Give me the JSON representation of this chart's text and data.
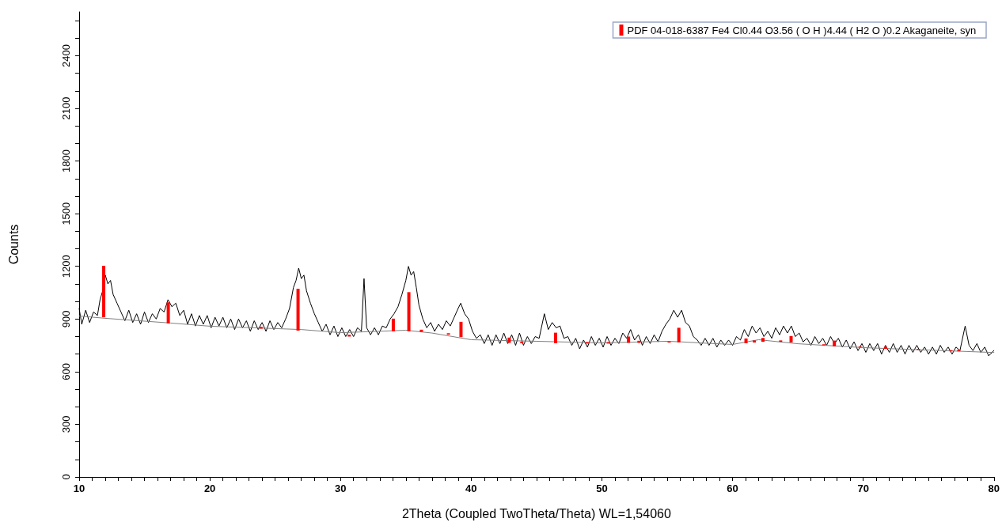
{
  "chart_data": {
    "type": "line",
    "xlabel": "2Theta (Coupled TwoTheta/Theta) WL=1,54060",
    "ylabel": "Counts",
    "xlim": [
      10,
      80
    ],
    "ylim": [
      0,
      2650
    ],
    "xticks": [
      10,
      {
        "value": 11,
        "label": null
      },
      {
        "value": 12,
        "label": null
      },
      {
        "value": 13,
        "label": null
      },
      {
        "value": 14,
        "label": null
      },
      {
        "value": 15,
        "label": null
      },
      {
        "value": 16,
        "label": null
      },
      {
        "value": 17,
        "label": null
      },
      {
        "value": 18,
        "label": null
      },
      {
        "value": 19,
        "label": null
      },
      20,
      {
        "value": 21,
        "label": null
      },
      {
        "value": 22,
        "label": null
      },
      {
        "value": 23,
        "label": null
      },
      {
        "value": 24,
        "label": null
      },
      {
        "value": 25,
        "label": null
      },
      {
        "value": 26,
        "label": null
      },
      {
        "value": 27,
        "label": null
      },
      {
        "value": 28,
        "label": null
      },
      {
        "value": 29,
        "label": null
      },
      30,
      {
        "value": 31,
        "label": null
      },
      {
        "value": 32,
        "label": null
      },
      {
        "value": 33,
        "label": null
      },
      {
        "value": 34,
        "label": null
      },
      {
        "value": 35,
        "label": null
      },
      {
        "value": 36,
        "label": null
      },
      {
        "value": 37,
        "label": null
      },
      {
        "value": 38,
        "label": null
      },
      {
        "value": 39,
        "label": null
      },
      40,
      {
        "value": 41,
        "label": null
      },
      {
        "value": 42,
        "label": null
      },
      {
        "value": 43,
        "label": null
      },
      {
        "value": 44,
        "label": null
      },
      {
        "value": 45,
        "label": null
      },
      {
        "value": 46,
        "label": null
      },
      {
        "value": 47,
        "label": null
      },
      {
        "value": 48,
        "label": null
      },
      {
        "value": 49,
        "label": null
      },
      50,
      {
        "value": 51,
        "label": null
      },
      {
        "value": 52,
        "label": null
      },
      {
        "value": 53,
        "label": null
      },
      {
        "value": 54,
        "label": null
      },
      {
        "value": 55,
        "label": null
      },
      {
        "value": 56,
        "label": null
      },
      {
        "value": 57,
        "label": null
      },
      {
        "value": 58,
        "label": null
      },
      {
        "value": 59,
        "label": null
      },
      60,
      {
        "value": 61,
        "label": null
      },
      {
        "value": 62,
        "label": null
      },
      {
        "value": 63,
        "label": null
      },
      {
        "value": 64,
        "label": null
      },
      {
        "value": 65,
        "label": null
      },
      {
        "value": 66,
        "label": null
      },
      {
        "value": 67,
        "label": null
      },
      {
        "value": 68,
        "label": null
      },
      {
        "value": 69,
        "label": null
      },
      70,
      {
        "value": 71,
        "label": null
      },
      {
        "value": 72,
        "label": null
      },
      {
        "value": 73,
        "label": null
      },
      {
        "value": 74,
        "label": null
      },
      {
        "value": 75,
        "label": null
      },
      {
        "value": 76,
        "label": null
      },
      {
        "value": 77,
        "label": null
      },
      {
        "value": 78,
        "label": null
      },
      {
        "value": 79,
        "label": null
      },
      80
    ],
    "yticks": [
      0,
      {
        "value": 100,
        "label": null
      },
      {
        "value": 200,
        "label": null
      },
      300,
      {
        "value": 400,
        "label": null
      },
      {
        "value": 500,
        "label": null
      },
      600,
      {
        "value": 700,
        "label": null
      },
      {
        "value": 800,
        "label": null
      },
      900,
      {
        "value": 1000,
        "label": null
      },
      {
        "value": 1100,
        "label": null
      },
      1200,
      {
        "value": 1300,
        "label": null
      },
      {
        "value": 1400,
        "label": null
      },
      1500,
      {
        "value": 1600,
        "label": null
      },
      {
        "value": 1700,
        "label": null
      },
      1800,
      {
        "value": 1900,
        "label": null
      },
      {
        "value": 2000,
        "label": null
      },
      2100,
      {
        "value": 2200,
        "label": null
      },
      {
        "value": 2300,
        "label": null
      },
      2400,
      {
        "value": 2500,
        "label": null
      },
      {
        "value": 2600,
        "label": null
      }
    ],
    "grid": false,
    "legend": "top right",
    "marker": "none",
    "line_style": "solid",
    "series": [
      {
        "color": "#000000",
        "x": [
          10,
          10.2,
          10.5,
          10.8,
          11.1,
          11.4,
          11.6,
          11.8,
          12.0,
          12.2,
          12.4,
          12.6,
          12.9,
          13.2,
          13.5,
          13.8,
          14.1,
          14.4,
          14.7,
          15.0,
          15.3,
          15.6,
          15.9,
          16.2,
          16.5,
          16.8,
          17.1,
          17.4,
          17.7,
          18.0,
          18.3,
          18.6,
          18.9,
          19.2,
          19.5,
          19.8,
          20.1,
          20.4,
          20.7,
          21.0,
          21.3,
          21.6,
          21.9,
          22.2,
          22.5,
          22.8,
          23.1,
          23.4,
          23.7,
          24.0,
          24.3,
          24.6,
          24.9,
          25.2,
          25.5,
          25.8,
          26.1,
          26.4,
          26.6,
          26.8,
          27.0,
          27.2,
          27.4,
          27.7,
          28.0,
          28.3,
          28.6,
          28.9,
          29.2,
          29.5,
          29.8,
          30.1,
          30.4,
          30.7,
          31.0,
          31.3,
          31.6,
          31.8,
          32.0,
          32.3,
          32.6,
          32.9,
          33.2,
          33.5,
          33.8,
          34.1,
          34.4,
          34.7,
          35.0,
          35.2,
          35.4,
          35.6,
          35.8,
          36.0,
          36.3,
          36.6,
          36.9,
          37.2,
          37.5,
          37.8,
          38.1,
          38.4,
          38.7,
          39.0,
          39.2,
          39.5,
          39.8,
          40.1,
          40.4,
          40.7,
          41.0,
          41.3,
          41.6,
          41.9,
          42.2,
          42.5,
          42.8,
          43.1,
          43.4,
          43.7,
          44.0,
          44.3,
          44.6,
          44.9,
          45.2,
          45.6,
          45.9,
          46.2,
          46.5,
          46.8,
          47.1,
          47.4,
          47.7,
          48.0,
          48.3,
          48.6,
          48.9,
          49.2,
          49.5,
          49.8,
          50.1,
          50.4,
          50.7,
          51.0,
          51.3,
          51.6,
          51.9,
          52.2,
          52.5,
          52.8,
          53.1,
          53.4,
          53.7,
          54.0,
          54.3,
          54.6,
          54.9,
          55.2,
          55.5,
          55.8,
          56.1,
          56.4,
          56.7,
          57.0,
          57.3,
          57.6,
          57.9,
          58.2,
          58.5,
          58.8,
          59.1,
          59.4,
          59.7,
          60.0,
          60.3,
          60.6,
          60.9,
          61.2,
          61.5,
          61.8,
          62.1,
          62.4,
          62.7,
          63.0,
          63.3,
          63.6,
          63.9,
          64.2,
          64.5,
          64.8,
          65.1,
          65.4,
          65.7,
          66.0,
          66.3,
          66.6,
          66.9,
          67.2,
          67.5,
          67.8,
          68.1,
          68.4,
          68.7,
          69.0,
          69.3,
          69.6,
          69.9,
          70.2,
          70.5,
          70.8,
          71.1,
          71.4,
          71.7,
          72.0,
          72.3,
          72.6,
          72.9,
          73.2,
          73.5,
          73.8,
          74.1,
          74.4,
          74.7,
          75.0,
          75.3,
          75.6,
          75.9,
          76.2,
          76.5,
          76.8,
          77.1,
          77.4,
          77.8,
          78.1,
          78.4,
          78.7,
          79.0,
          79.3,
          79.6,
          80.0
        ],
        "values": [
          960,
          870,
          950,
          880,
          940,
          920,
          1010,
          1060,
          1150,
          1100,
          1120,
          1040,
          990,
          940,
          890,
          950,
          880,
          930,
          870,
          940,
          880,
          930,
          900,
          960,
          940,
          1010,
          970,
          990,
          920,
          950,
          870,
          930,
          860,
          920,
          870,
          920,
          850,
          910,
          860,
          910,
          850,
          900,
          840,
          900,
          850,
          890,
          830,
          890,
          840,
          880,
          830,
          890,
          840,
          880,
          850,
          900,
          960,
          1080,
          1120,
          1190,
          1130,
          1150,
          1060,
          990,
          930,
          880,
          830,
          870,
          810,
          860,
          800,
          850,
          800,
          840,
          800,
          850,
          830,
          1130,
          850,
          810,
          850,
          810,
          860,
          850,
          900,
          930,
          970,
          1040,
          1120,
          1200,
          1150,
          1170,
          1080,
          980,
          900,
          850,
          880,
          830,
          870,
          840,
          890,
          860,
          910,
          960,
          990,
          930,
          900,
          830,
          790,
          810,
          760,
          810,
          750,
          810,
          760,
          820,
          760,
          810,
          750,
          820,
          750,
          800,
          760,
          800,
          790,
          930,
          840,
          880,
          850,
          860,
          790,
          800,
          750,
          790,
          730,
          780,
          740,
          800,
          750,
          790,
          740,
          800,
          750,
          790,
          760,
          820,
          790,
          840,
          780,
          810,
          750,
          800,
          760,
          810,
          770,
          830,
          870,
          900,
          950,
          910,
          950,
          880,
          860,
          800,
          780,
          750,
          790,
          750,
          790,
          740,
          780,
          750,
          780,
          750,
          800,
          780,
          840,
          800,
          860,
          820,
          850,
          800,
          830,
          790,
          850,
          810,
          860,
          820,
          860,
          800,
          820,
          770,
          790,
          750,
          800,
          760,
          790,
          750,
          800,
          760,
          790,
          740,
          780,
          730,
          770,
          720,
          760,
          710,
          760,
          720,
          760,
          700,
          750,
          710,
          760,
          710,
          750,
          700,
          750,
          710,
          750,
          710,
          740,
          700,
          740,
          700,
          750,
          710,
          740,
          700,
          740,
          720,
          860,
          750,
          720,
          760,
          710,
          740,
          690,
          720
        ]
      },
      {
        "type": "line",
        "color": "#808080",
        "x": [
          10,
          12,
          17,
          20,
          27,
          30,
          33,
          35,
          37,
          40,
          45,
          50,
          55,
          56,
          58,
          60,
          62,
          65,
          70,
          75,
          80
        ],
        "values": [
          917,
          904,
          877,
          859,
          840,
          822,
          830,
          836,
          820,
          782,
          773,
          764,
          773,
          770,
          762,
          755,
          782,
          759,
          737,
          723,
          709
        ]
      },
      {
        "type": "bar",
        "name": "PDF 04-018-6387 Fe4 Cl0.44 O3.56 ( O H )4.44 ( H2 O )0.2 Akaganeite, syn",
        "color": "#ff0000",
        "x": [
          11.88,
          16.82,
          23.92,
          26.75,
          30.67,
          34.04,
          35.23,
          36.19,
          38.26,
          39.22,
          42.91,
          43.87,
          46.46,
          48.87,
          50.49,
          52.04,
          52.84,
          55.15,
          55.89,
          61.03,
          61.67,
          62.33,
          63.68,
          64.48,
          66.99,
          67.79,
          69.76,
          71.71,
          74.22,
          76.71,
          77.31
        ],
        "base": [
          910,
          875,
          845,
          834,
          800,
          830,
          830,
          827,
          811,
          797,
          764,
          762,
          762,
          760,
          760,
          764,
          764,
          766,
          767,
          762,
          766,
          770,
          770,
          767,
          750,
          744,
          738,
          730,
          724,
          716,
          716
        ],
        "values": [
          293,
          120,
          10,
          238,
          10,
          72,
          223,
          12,
          8,
          87,
          30,
          8,
          60,
          8,
          8,
          36,
          12,
          6,
          83,
          27,
          12,
          22,
          8,
          36,
          6,
          33,
          5,
          12,
          6,
          6,
          8
        ]
      }
    ]
  }
}
